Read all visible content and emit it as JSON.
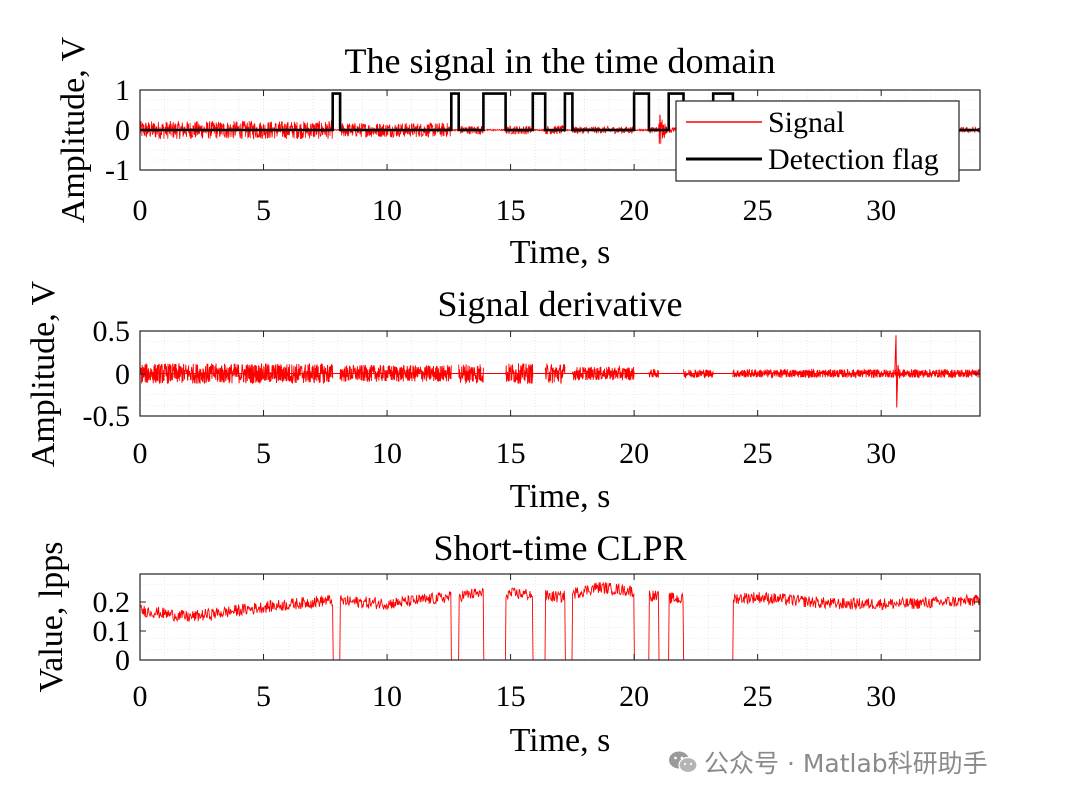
{
  "colors": {
    "signal": "#ff0000",
    "flag": "#000000",
    "grid": "#dcdcdc"
  },
  "watermark": {
    "text": "公众号 · Matlab科研助手",
    "icon": "wechat-icon"
  },
  "chart_data": [
    {
      "type": "line",
      "title": "The signal in the time domain",
      "xlabel": "Time, s",
      "ylabel": "Amplitude, V",
      "xlim": [
        0,
        34
      ],
      "ylim": [
        -1.1,
        1.1
      ],
      "xticks": [
        "0",
        "5",
        "10",
        "15",
        "20",
        "25",
        "30"
      ],
      "yticks": [
        "-1",
        "0",
        "1"
      ],
      "grid": "minor dotted",
      "legend": {
        "placement": "top-right inside",
        "entries": [
          "Signal",
          "Detection flag"
        ]
      },
      "series": [
        {
          "name": "Signal",
          "color": "#ff0000",
          "description_points": [
            {
              "t0": 0,
              "t1": 7.8,
              "amp": 0.25
            },
            {
              "t0": 7.8,
              "t1": 8.1,
              "amp": 0.02
            },
            {
              "t0": 8.1,
              "t1": 12.6,
              "amp": 0.2
            },
            {
              "t0": 12.6,
              "t1": 12.9,
              "amp": 0.02
            },
            {
              "t0": 12.9,
              "t1": 13.9,
              "amp": 0.12
            },
            {
              "t0": 13.9,
              "t1": 14.8,
              "amp": 0.02
            },
            {
              "t0": 14.8,
              "t1": 15.9,
              "amp": 0.12
            },
            {
              "t0": 15.9,
              "t1": 16.4,
              "amp": 0.02
            },
            {
              "t0": 16.4,
              "t1": 17.2,
              "amp": 0.12
            },
            {
              "t0": 17.2,
              "t1": 17.5,
              "amp": 0.02
            },
            {
              "t0": 17.5,
              "t1": 20.0,
              "amp": 0.1
            },
            {
              "t0": 20.0,
              "t1": 20.6,
              "amp": 0.02
            },
            {
              "t0": 20.6,
              "t1": 21.0,
              "amp": 0.08
            },
            {
              "t0": 21.0,
              "t1": 21.4,
              "amp": 0.5
            },
            {
              "t0": 21.4,
              "t1": 34,
              "amp": 0.08
            }
          ]
        },
        {
          "name": "Detection flag",
          "color": "#000000",
          "pulses": [
            [
              7.8,
              8.1
            ],
            [
              12.6,
              12.9
            ],
            [
              13.9,
              14.8
            ],
            [
              15.9,
              16.4
            ],
            [
              17.2,
              17.5
            ],
            [
              20.0,
              20.6
            ],
            [
              21.4,
              22.0
            ],
            [
              23.2,
              24.0
            ]
          ]
        }
      ]
    },
    {
      "type": "line",
      "title": "Signal derivative",
      "xlabel": "Time, s",
      "ylabel": "Amplitude, V",
      "xlim": [
        0,
        34
      ],
      "ylim": [
        -0.5,
        0.5
      ],
      "xticks": [
        "0",
        "5",
        "10",
        "15",
        "20",
        "25",
        "30"
      ],
      "yticks": [
        "-0.5",
        "0",
        "0.5"
      ],
      "grid": "minor dotted",
      "series": [
        {
          "color": "#ff0000",
          "bursts": [
            {
              "t0": 0,
              "t1": 7.8,
              "amp": 0.12
            },
            {
              "t0": 8.1,
              "t1": 12.6,
              "amp": 0.1
            },
            {
              "t0": 12.9,
              "t1": 13.9,
              "amp": 0.12
            },
            {
              "t0": 14.8,
              "t1": 15.9,
              "amp": 0.12
            },
            {
              "t0": 16.4,
              "t1": 17.2,
              "amp": 0.12
            },
            {
              "t0": 17.5,
              "t1": 20.0,
              "amp": 0.08
            },
            {
              "t0": 20.6,
              "t1": 21.0,
              "amp": 0.05
            },
            {
              "t0": 22.0,
              "t1": 23.2,
              "amp": 0.05
            },
            {
              "t0": 24.0,
              "t1": 34.0,
              "amp": 0.05
            }
          ],
          "spike": {
            "t": 30.6,
            "max": 0.45,
            "min": -0.4
          }
        }
      ]
    },
    {
      "type": "line",
      "title": "Short-time CLPR",
      "xlabel": "Time, s",
      "ylabel": "Value, lpps",
      "xlim": [
        0,
        34
      ],
      "ylim": [
        0,
        0.26
      ],
      "xticks": [
        "0",
        "5",
        "10",
        "15",
        "20",
        "25",
        "30"
      ],
      "yticks": [
        "0",
        "0.1",
        "0.2"
      ],
      "grid": "minor dotted",
      "series": [
        {
          "color": "#ff0000",
          "zero_intervals": [
            [
              7.8,
              8.1
            ],
            [
              12.6,
              12.9
            ],
            [
              13.9,
              14.8
            ],
            [
              15.9,
              16.4
            ],
            [
              17.2,
              17.5
            ],
            [
              20.0,
              20.6
            ],
            [
              21.0,
              21.4
            ],
            [
              22.0,
              23.2
            ],
            [
              23.2,
              24.0
            ]
          ],
          "levels": [
            {
              "t": 0,
              "v": 0.15
            },
            {
              "t": 2,
              "v": 0.13
            },
            {
              "t": 5,
              "v": 0.16
            },
            {
              "t": 7.6,
              "v": 0.18
            },
            {
              "t": 10,
              "v": 0.17
            },
            {
              "t": 12.5,
              "v": 0.19
            },
            {
              "t": 13.5,
              "v": 0.2
            },
            {
              "t": 15.5,
              "v": 0.2
            },
            {
              "t": 17,
              "v": 0.19
            },
            {
              "t": 18.5,
              "v": 0.22
            },
            {
              "t": 19.8,
              "v": 0.21
            },
            {
              "t": 21,
              "v": 0.19
            },
            {
              "t": 22.5,
              "v": 0.18
            },
            {
              "t": 25,
              "v": 0.19
            },
            {
              "t": 28,
              "v": 0.17
            },
            {
              "t": 31,
              "v": 0.17
            },
            {
              "t": 34,
              "v": 0.18
            }
          ]
        }
      ]
    }
  ]
}
